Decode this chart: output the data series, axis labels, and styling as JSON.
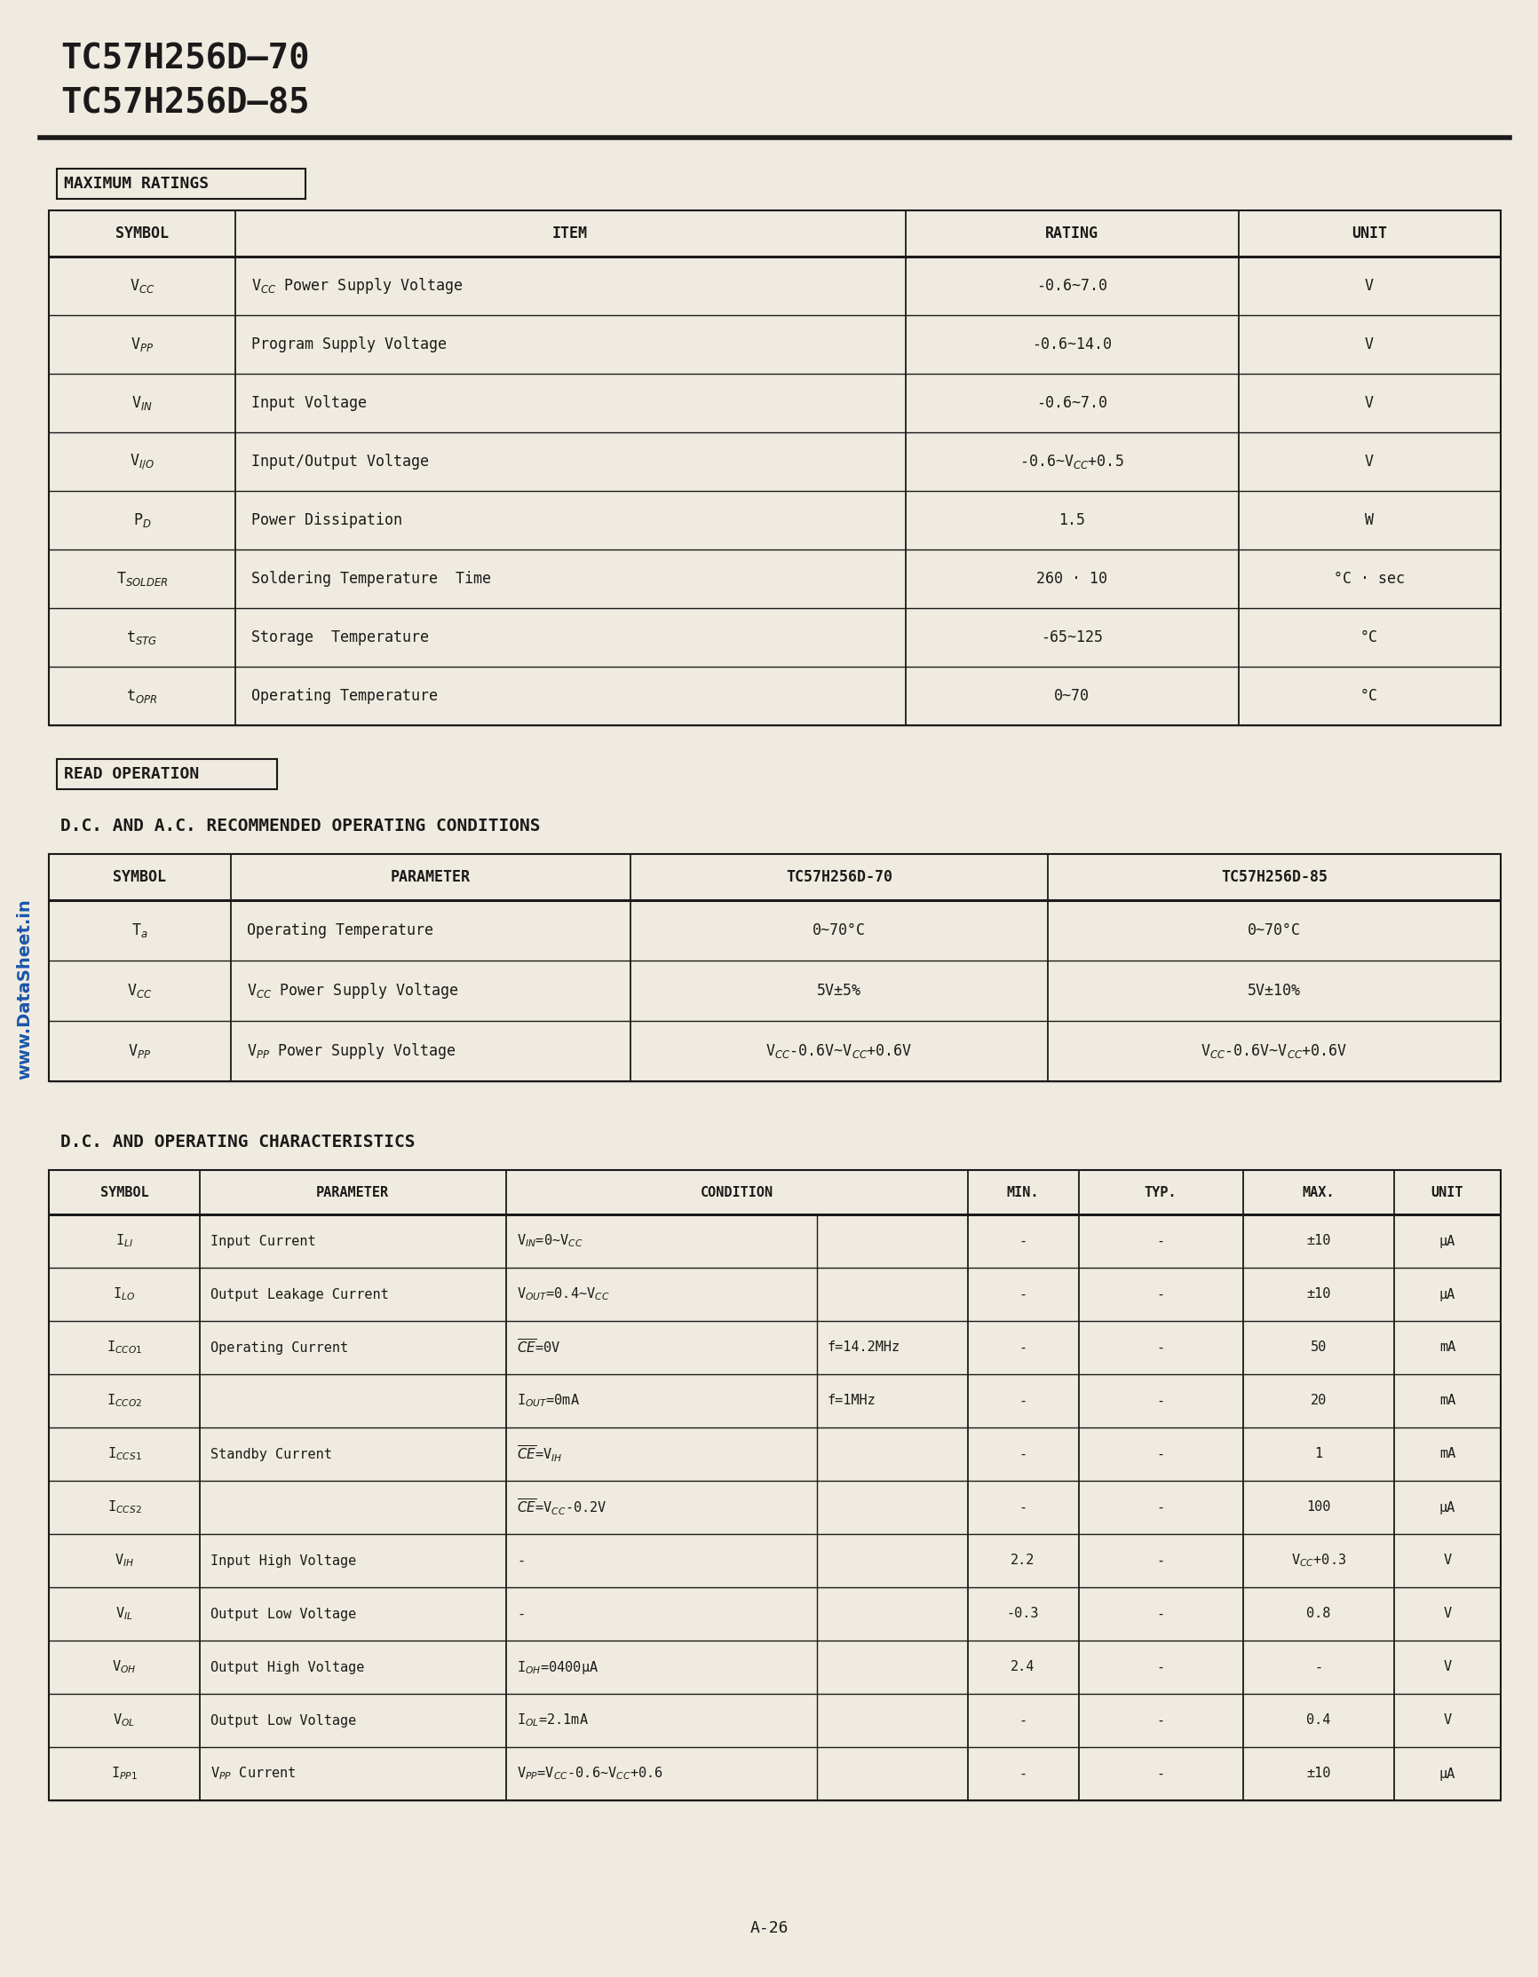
{
  "title_line1": "TC57H256D–70",
  "title_line2": "TC57H256D–85",
  "bg_color": "#f0ebe0",
  "text_color": "#1a1a1a",
  "page_label": "A-26",
  "section1_label": "MAXIMUM RATINGS",
  "max_ratings_headers": [
    "SYMBOL",
    "ITEM",
    "RATING",
    "UNIT"
  ],
  "max_ratings_rows": [
    [
      "V$_{CC}$",
      "V$_{CC}$ Power Supply Voltage",
      "-0.6~7.0",
      "V"
    ],
    [
      "V$_{PP}$",
      "Program Supply Voltage",
      "-0.6~14.0",
      "V"
    ],
    [
      "V$_{IN}$",
      "Input Voltage",
      "-0.6~7.0",
      "V"
    ],
    [
      "V$_{I/O}$",
      "Input/Output Voltage",
      "-0.6~V$_{CC}$+0.5",
      "V"
    ],
    [
      "P$_D$",
      "Power Dissipation",
      "1.5",
      "W"
    ],
    [
      "T$_{SOLDER}$",
      "Soldering Temperature  Time",
      "260 · 10",
      "°C · sec"
    ],
    [
      "t$_{STG}$",
      "Storage  Temperature",
      "-65~125",
      "°C"
    ],
    [
      "t$_{OPR}$",
      "Operating Temperature",
      "0~70",
      "°C"
    ]
  ],
  "section2_label": "READ OPERATION",
  "dc_ac_title": "D.C. AND A.C. RECOMMENDED OPERATING CONDITIONS",
  "dc_ac_headers": [
    "SYMBOL",
    "PARAMETER",
    "TC57H256D-70",
    "TC57H256D-85"
  ],
  "dc_ac_rows": [
    [
      "T$_a$",
      "Operating Temperature",
      "0~70°C",
      "0~70°C"
    ],
    [
      "V$_{CC}$",
      "V$_{CC}$ Power Supply Voltage",
      "5V±5%",
      "5V±10%"
    ],
    [
      "V$_{PP}$",
      "V$_{PP}$ Power Supply Voltage",
      "V$_{CC}$-0.6V~V$_{CC}$+0.6V",
      "V$_{CC}$-0.6V~V$_{CC}$+0.6V"
    ]
  ],
  "dc_char_title": "D.C. AND OPERATING CHARACTERISTICS",
  "dc_char_headers": [
    "SYMBOL",
    "PARAMETER",
    "CONDITION",
    "MIN.",
    "TYP.",
    "MAX.",
    "UNIT"
  ],
  "dc_char_rows": [
    [
      "I$_{LI}$",
      "Input Current",
      "V$_{IN}$=0~V$_{CC}$",
      "",
      "-",
      "-",
      "±10",
      "μA"
    ],
    [
      "I$_{LO}$",
      "Output Leakage Current",
      "V$_{OUT}$=0.4~V$_{CC}$",
      "",
      "-",
      "-",
      "±10",
      "μA"
    ],
    [
      "I$_{CCO1}$",
      "Operating Current",
      "$\\overline{CE}$=0V",
      "f=14.2MHz",
      "-",
      "-",
      "50",
      "mA"
    ],
    [
      "I$_{CCO2}$",
      "",
      "I$_{OUT}$=0mA",
      "f=1MHz",
      "-",
      "-",
      "20",
      "mA"
    ],
    [
      "I$_{CCS1}$",
      "Standby Current",
      "$\\overline{CE}$=V$_{IH}$",
      "",
      "-",
      "-",
      "1",
      "mA"
    ],
    [
      "I$_{CCS2}$",
      "",
      "$\\overline{CE}$=V$_{CC}$-0.2V",
      "",
      "-",
      "-",
      "100",
      "μA"
    ],
    [
      "V$_{IH}$",
      "Input High Voltage",
      "-",
      "",
      "2.2",
      "-",
      "V$_{CC}$+0.3",
      "V"
    ],
    [
      "V$_{IL}$",
      "Output Low Voltage",
      "-",
      "",
      "-0.3",
      "-",
      "0.8",
      "V"
    ],
    [
      "V$_{OH}$",
      "Output High Voltage",
      "I$_{OH}$=0400μA",
      "",
      "2.4",
      "-",
      "-",
      "V"
    ],
    [
      "V$_{OL}$",
      "Output Low Voltage",
      "I$_{OL}$=2.1mA",
      "",
      "-",
      "-",
      "0.4",
      "V"
    ],
    [
      "I$_{PP1}$",
      "V$_{PP}$ Current",
      "V$_{PP}$=V$_{CC}$-0.6~V$_{CC}$+0.6",
      "",
      "-",
      "-",
      "±10",
      "μA"
    ]
  ],
  "watermark_text": "www.DataSheet.in"
}
